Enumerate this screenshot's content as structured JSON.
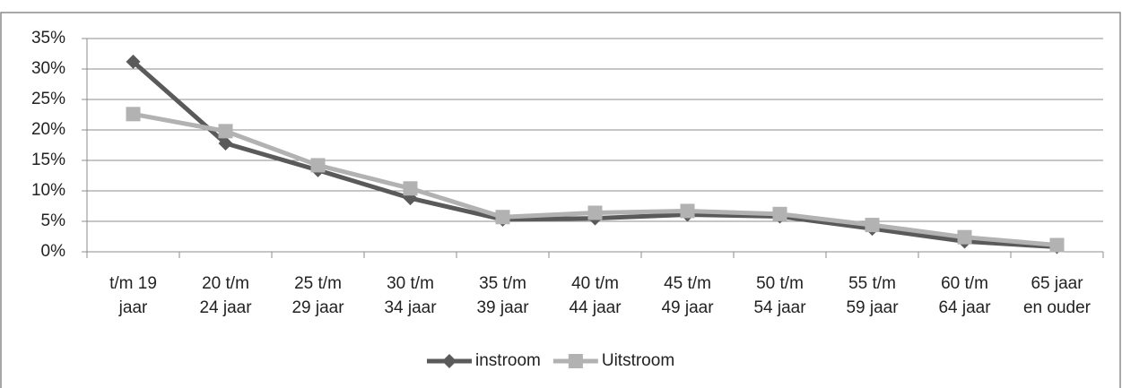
{
  "chart_data": {
    "type": "line",
    "categories": [
      [
        "t/m 19",
        "jaar"
      ],
      [
        "20 t/m",
        "24 jaar"
      ],
      [
        "25 t/m",
        "29 jaar"
      ],
      [
        "30 t/m",
        "34 jaar"
      ],
      [
        "35 t/m",
        "39 jaar"
      ],
      [
        "40 t/m",
        "44 jaar"
      ],
      [
        "45 t/m",
        "49 jaar"
      ],
      [
        "50 t/m",
        "54 jaar"
      ],
      [
        "55 t/m",
        "59 jaar"
      ],
      [
        "60 t/m",
        "64 jaar"
      ],
      [
        "65 jaar",
        "en ouder"
      ]
    ],
    "series": [
      {
        "name": "instroom",
        "color": "#5a5a5a",
        "marker": "diamond",
        "values": [
          31.2,
          17.8,
          13.4,
          8.8,
          5.3,
          5.5,
          6.1,
          5.8,
          3.8,
          1.7,
          0.8
        ]
      },
      {
        "name": "Uitstroom",
        "color": "#b2b2b2",
        "marker": "square",
        "values": [
          22.6,
          19.8,
          14.2,
          10.4,
          5.7,
          6.4,
          6.7,
          6.2,
          4.4,
          2.4,
          1.1
        ]
      }
    ],
    "ylim": [
      0,
      35
    ],
    "yticks": [
      {
        "value": 0,
        "label": "0%"
      },
      {
        "value": 5,
        "label": "5%"
      },
      {
        "value": 10,
        "label": "10%"
      },
      {
        "value": 15,
        "label": "15%"
      },
      {
        "value": 20,
        "label": "20%"
      },
      {
        "value": 25,
        "label": "25%"
      },
      {
        "value": 30,
        "label": "30%"
      },
      {
        "value": 35,
        "label": "35%"
      }
    ],
    "grid": true,
    "legend": "bottom"
  }
}
